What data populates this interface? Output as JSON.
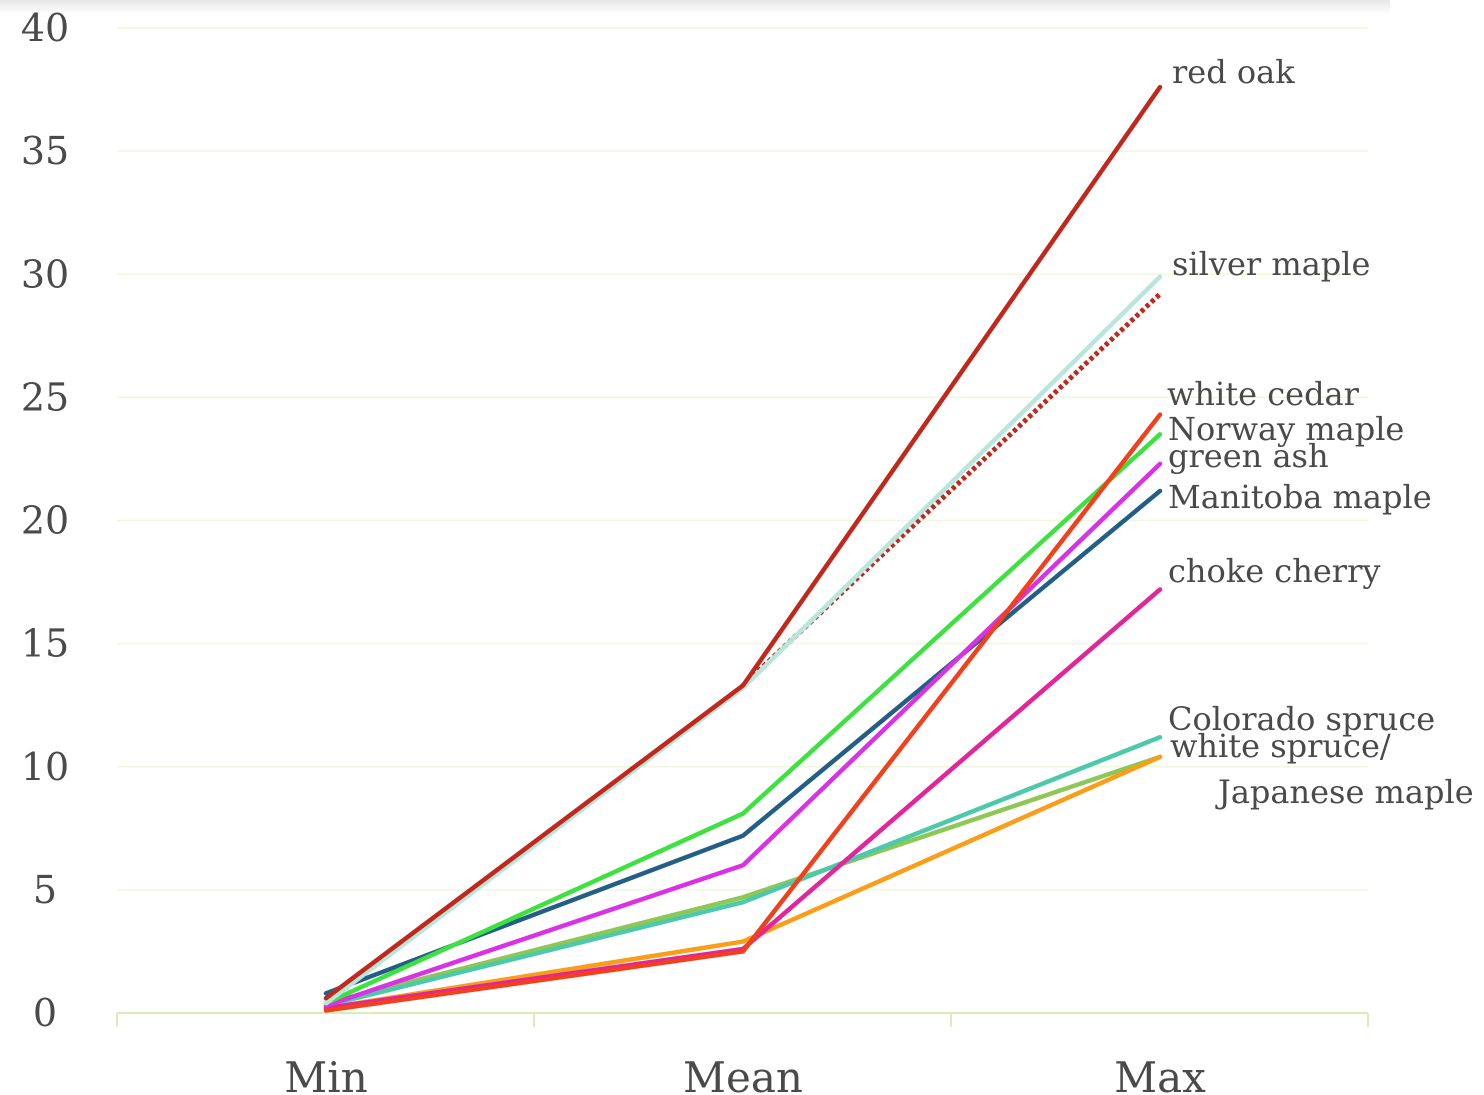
{
  "chart_data": {
    "type": "line",
    "title": "",
    "xlabel": "",
    "ylabel": "",
    "categories": [
      "Min",
      "Mean",
      "Max"
    ],
    "ylim": [
      0,
      40
    ],
    "yticks": [
      0,
      5,
      10,
      15,
      20,
      25,
      30,
      35,
      40
    ],
    "grid": true,
    "legend": "none (series labelled at line ends)",
    "series": [
      {
        "name": "red oak",
        "values": [
          0.6,
          13.3,
          37.6
        ],
        "color": "#c0281c",
        "dash": false
      },
      {
        "name": "silver maple",
        "values": [
          0.4,
          13.2,
          29.9
        ],
        "color": "#b8e6dc",
        "dash": false
      },
      {
        "name": "",
        "values": [
          null,
          13.3,
          29.2
        ],
        "color": "#c0281c",
        "dash": true
      },
      {
        "name": "white cedar",
        "values": [
          0.1,
          2.5,
          24.3
        ],
        "color": "#f0401c",
        "dash": false
      },
      {
        "name": "Norway maple",
        "values": [
          0.4,
          8.1,
          23.5
        ],
        "color": "#3de240",
        "dash": false
      },
      {
        "name": "green ash",
        "values": [
          0.3,
          6.0,
          22.3
        ],
        "color": "#d832e4",
        "dash": false
      },
      {
        "name": "Manitoba maple",
        "values": [
          0.8,
          7.2,
          21.2
        ],
        "color": "#235f84",
        "dash": false
      },
      {
        "name": "choke cherry",
        "values": [
          0.2,
          2.6,
          17.2
        ],
        "color": "#e2259a",
        "dash": false
      },
      {
        "name": "Colorado spruce",
        "values": [
          0.3,
          4.5,
          11.2
        ],
        "color": "#4cc9ab",
        "dash": false
      },
      {
        "name": "white spruce/",
        "values": [
          0.2,
          2.9,
          10.4
        ],
        "color": "#fa9d18",
        "dash": false
      },
      {
        "name": "Japanese maple",
        "values": [
          0.4,
          4.7,
          10.4
        ],
        "color": "#8fc756",
        "dash": false
      }
    ]
  },
  "colors": {
    "grid": "#f1f7dd",
    "axis": "#d9eeb5",
    "text": "#4a4a4a"
  }
}
